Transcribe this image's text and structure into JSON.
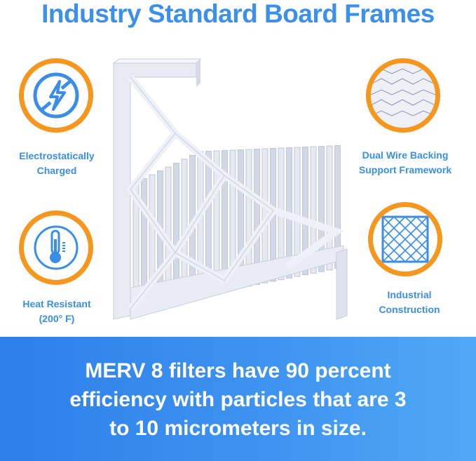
{
  "title": "Industry Standard Board Frames",
  "features": [
    {
      "label_lines": [
        "Electrostatically",
        "Charged"
      ],
      "icon": "no-static-lightning-icon"
    },
    {
      "label_lines": [
        "Heat Resistant",
        "(200° F)"
      ],
      "icon": "thermometer-icon"
    },
    {
      "label_lines": [
        "Dual Wire Backing",
        "Support Framework"
      ],
      "icon": "wire-mesh-photo"
    },
    {
      "label_lines": [
        "Industrial",
        "Construction"
      ],
      "icon": "grid-frame-icon"
    }
  ],
  "banner": {
    "lines": [
      "MERV 8 filters have 90 percent",
      "efficiency with particles that are 3",
      "to 10 micrometers in size."
    ]
  },
  "colors": {
    "accent_blue": "#3a8ee6",
    "ring_orange": "#f5961e",
    "banner_blue": "#2d7fea"
  }
}
